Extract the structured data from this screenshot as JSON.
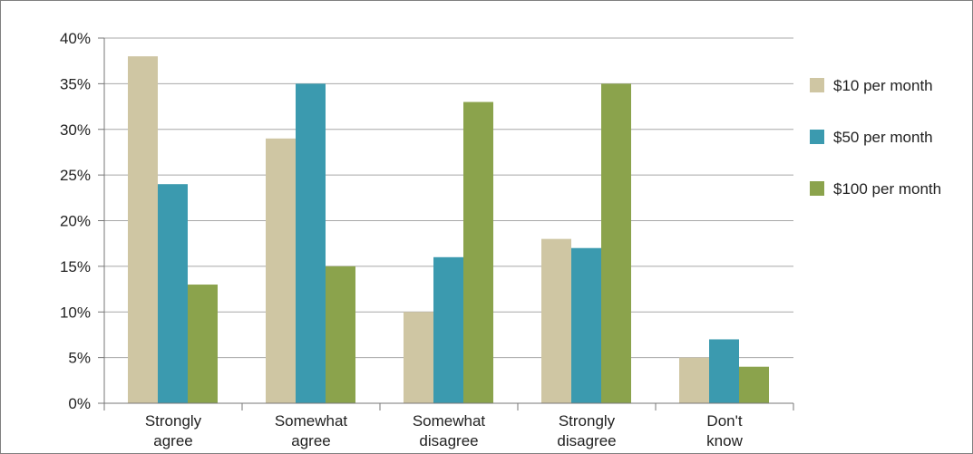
{
  "chart_data": {
    "type": "bar",
    "categories": [
      [
        "Strongly",
        "agree"
      ],
      [
        "Somewhat",
        "agree"
      ],
      [
        "Somewhat",
        "disagree"
      ],
      [
        "Strongly",
        "disagree"
      ],
      [
        "Don't",
        "know"
      ]
    ],
    "series": [
      {
        "name": "$10 per month",
        "color": "#cfc6a3",
        "values": [
          38,
          29,
          10,
          18,
          5
        ]
      },
      {
        "name": "$50 per month",
        "color": "#3b9aaf",
        "values": [
          24,
          35,
          16,
          17,
          7
        ]
      },
      {
        "name": "$100 per month",
        "color": "#8ba34c",
        "values": [
          13,
          15,
          33,
          35,
          4
        ]
      }
    ],
    "y_ticks": [
      "0%",
      "5%",
      "10%",
      "15%",
      "20%",
      "25%",
      "30%",
      "35%",
      "40%"
    ],
    "ylim": [
      0,
      40
    ],
    "grid": true,
    "legend_position": "right"
  }
}
